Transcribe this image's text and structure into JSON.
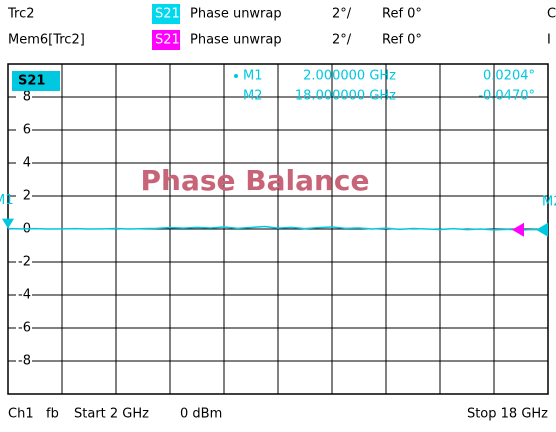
{
  "header": {
    "rows": [
      {
        "trace": "Trc2",
        "param": "S21",
        "format": "Phase unwrap",
        "scale": "2°/",
        "ref": "Ref 0°",
        "extra": "C"
      },
      {
        "trace": "Mem6[Trc2]",
        "param": "S21",
        "format": "Phase unwrap",
        "scale": "2°/",
        "ref": "Ref 0°",
        "extra": "I"
      }
    ]
  },
  "chart_data": {
    "type": "line",
    "title": "Phase Balance",
    "xlim": [
      2,
      18
    ],
    "ylim": [
      -10,
      10
    ],
    "yticks": [
      -8,
      -6,
      -4,
      -2,
      0,
      2,
      4,
      6,
      8
    ],
    "grid": true,
    "series": [
      {
        "name": "S21",
        "color": "#00c8e0",
        "x": [
          2,
          2.4,
          2.8,
          3.2,
          3.6,
          4,
          4.4,
          4.8,
          5.2,
          5.6,
          6,
          6.4,
          6.8,
          7.2,
          7.6,
          8,
          8.4,
          8.8,
          9.2,
          9.6,
          10,
          10.4,
          10.8,
          11.2,
          11.6,
          12,
          12.4,
          12.8,
          13.2,
          13.6,
          14,
          14.4,
          14.8,
          15.2,
          15.6,
          16,
          16.4,
          16.8,
          17.2,
          17.6,
          18
        ],
        "values": [
          0.02,
          0.01,
          0.02,
          0.0,
          0.01,
          0.02,
          0.0,
          0.01,
          0.03,
          0.0,
          0.02,
          0.04,
          0.08,
          0.05,
          0.1,
          0.06,
          0.12,
          0.04,
          0.09,
          0.15,
          0.05,
          0.1,
          0.02,
          0.08,
          0.12,
          0.04,
          0.06,
          0.0,
          0.05,
          -0.02,
          0.03,
          0.0,
          -0.03,
          0.02,
          -0.04,
          0.0,
          -0.05,
          -0.02,
          -0.06,
          -0.03,
          -0.05
        ]
      }
    ],
    "markers": [
      {
        "name": "M1",
        "x": 2,
        "x_label": "2.000000 GHz",
        "value": 0.0204,
        "value_label": "0.0204°"
      },
      {
        "name": "M2",
        "x": 18,
        "x_label": "18.000000 GHz",
        "value": -0.047,
        "value_label": "-0.0470°"
      }
    ]
  },
  "footer": {
    "channel": "Ch1",
    "mode": "fb",
    "start": "Start 2 GHz",
    "power": "0 dBm",
    "stop": "Stop 18 GHz"
  }
}
